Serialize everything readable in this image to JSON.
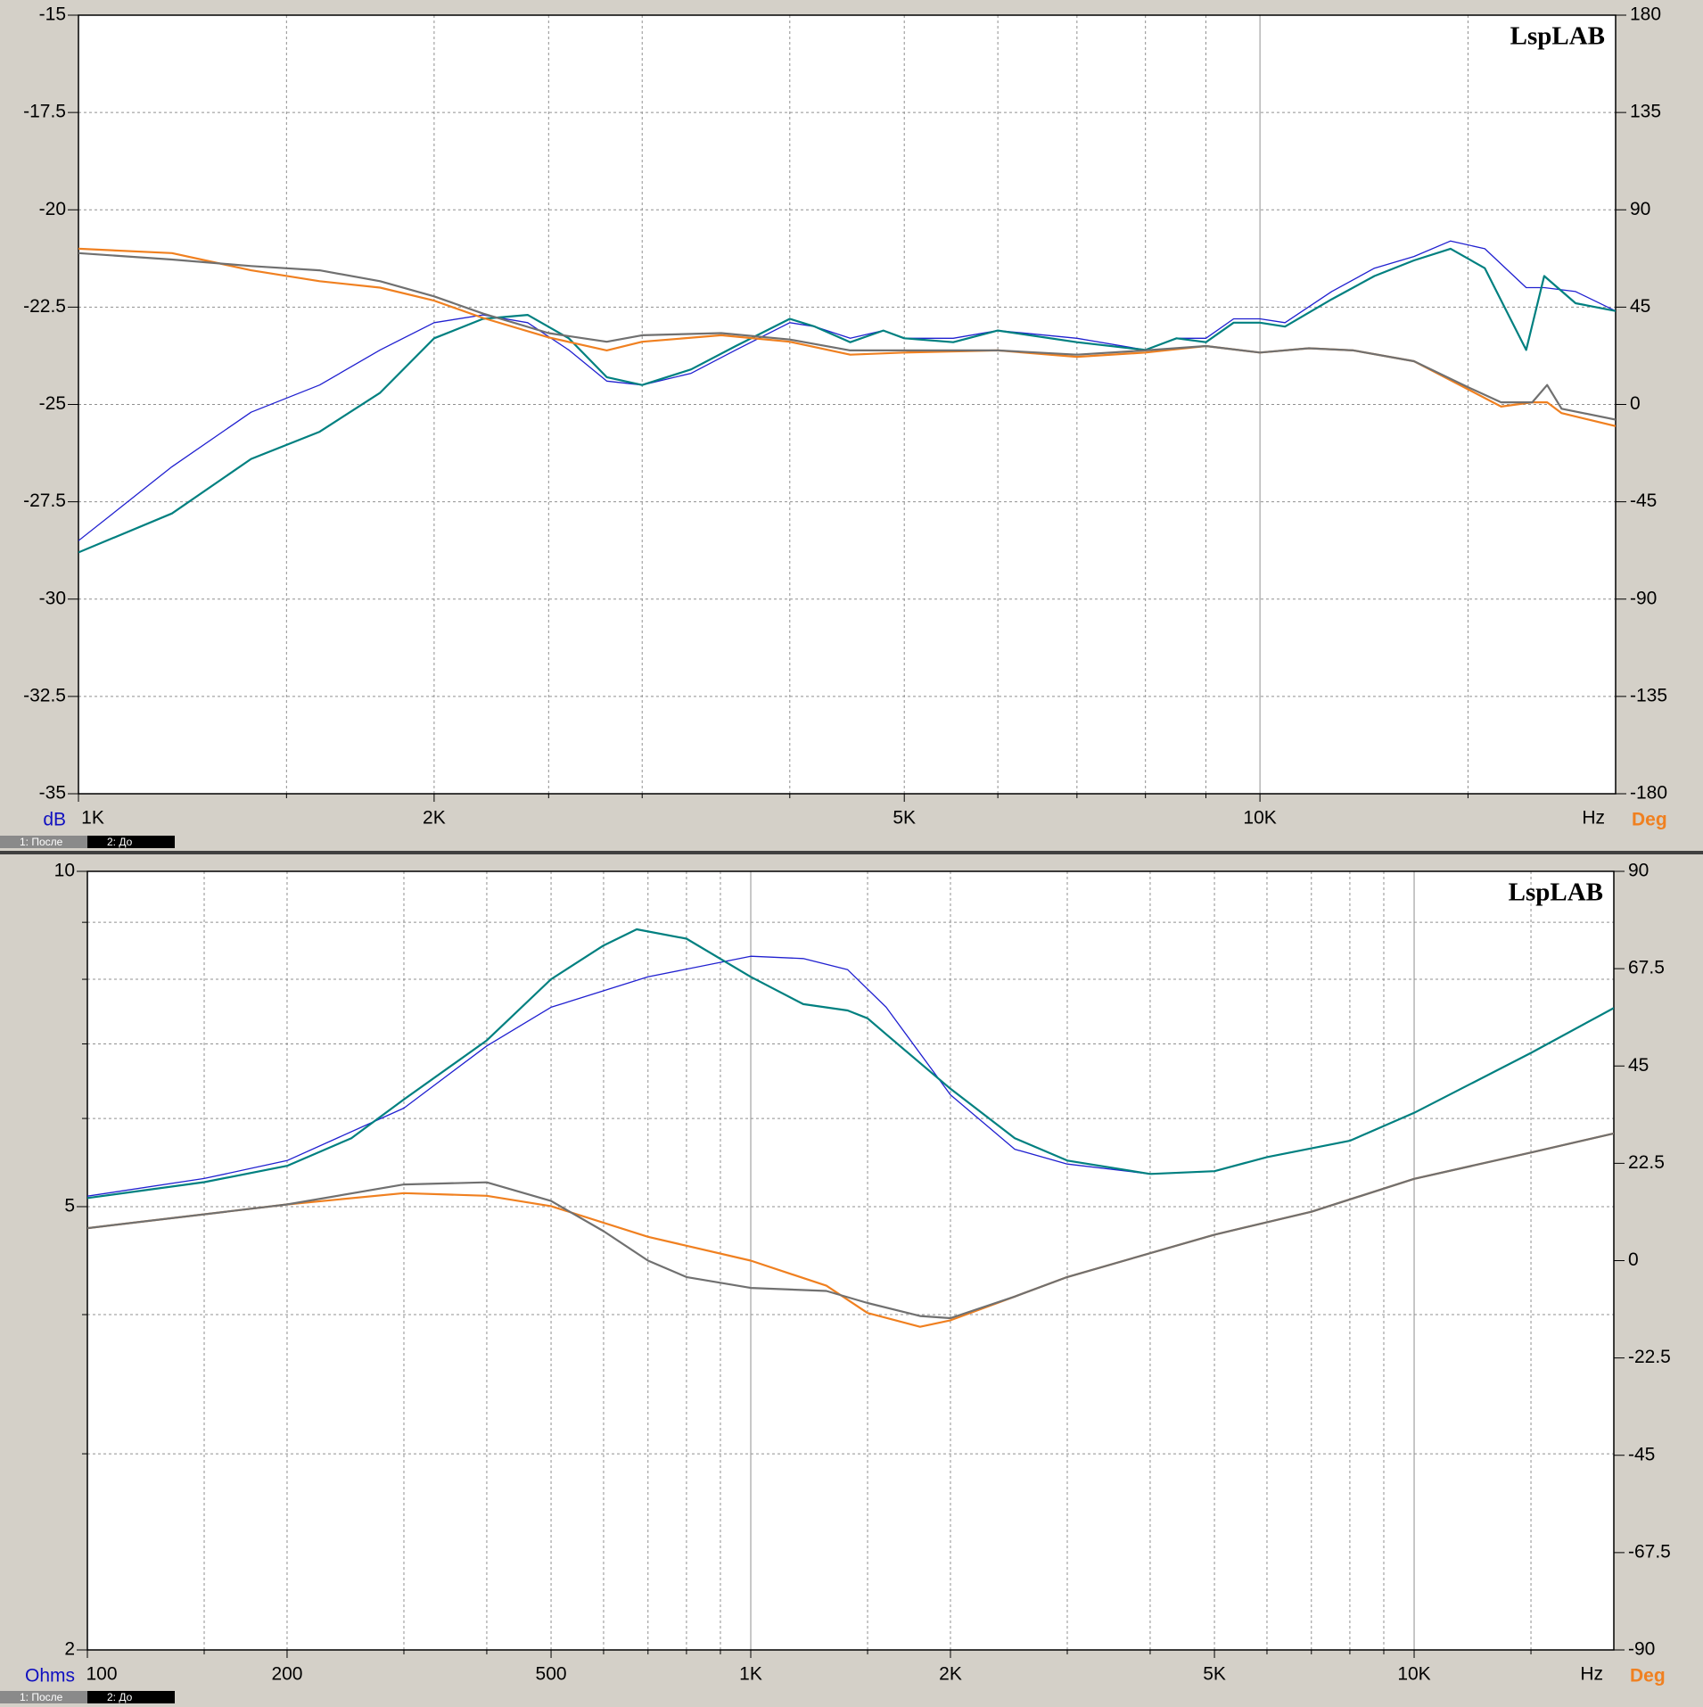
{
  "chart_data": [
    {
      "type": "line",
      "brand": "LspLAB",
      "y_unit": "dB",
      "y2_unit": "Deg",
      "x_unit": "Hz",
      "xscale": "log",
      "yscale": "linear",
      "xlim": [
        1000,
        20000
      ],
      "xticks": [
        {
          "value": 1000,
          "label": "1K"
        },
        {
          "value": 2000,
          "label": "2K"
        },
        {
          "value": 5000,
          "label": "5K"
        },
        {
          "value": 10000,
          "label": "10K"
        }
      ],
      "xminor": [
        1500,
        2500,
        3000,
        4000,
        6000,
        7000,
        8000,
        9000,
        15000
      ],
      "ylim": [
        -35,
        -15
      ],
      "yticks": [
        -15,
        -17.5,
        -20,
        -22.5,
        -25,
        -27.5,
        -30,
        -32.5,
        -35
      ],
      "y2lim": [
        -180,
        180
      ],
      "y2ticks": [
        180,
        135,
        90,
        45,
        0,
        -45,
        -90,
        -135,
        -180
      ],
      "legend": [
        "1: После",
        "2: До"
      ],
      "series": [
        {
          "color": "#2020d0",
          "x": [
            1000,
            1200,
            1400,
            1600,
            1800,
            2000,
            2200,
            2400,
            2600,
            2800,
            3000,
            3300,
            3600,
            4000,
            4200,
            4500,
            4800,
            5000,
            5500,
            6000,
            7000,
            8000,
            8500,
            9000,
            9500,
            10000,
            10500,
            11500,
            12500,
            13500,
            14500,
            15500,
            16800,
            17400,
            18500,
            20000
          ],
          "values": [
            -28.5,
            -26.6,
            -25.2,
            -24.5,
            -23.6,
            -22.9,
            -22.7,
            -22.9,
            -23.6,
            -24.4,
            -24.5,
            -24.2,
            -23.6,
            -22.9,
            -23.0,
            -23.3,
            -23.1,
            -23.3,
            -23.3,
            -23.1,
            -23.3,
            -23.6,
            -23.3,
            -23.3,
            -22.8,
            -22.8,
            -22.9,
            -22.1,
            -21.5,
            -21.2,
            -20.8,
            -21.0,
            -22.0,
            -22.0,
            -22.1,
            -22.6
          ]
        },
        {
          "color": "#008080",
          "x": [
            1000,
            1200,
            1400,
            1600,
            1800,
            2000,
            2200,
            2400,
            2600,
            2800,
            3000,
            3300,
            3600,
            4000,
            4200,
            4500,
            4800,
            5000,
            5500,
            6000,
            7000,
            8000,
            8500,
            9000,
            9500,
            10000,
            10500,
            11500,
            12500,
            13500,
            14500,
            15500,
            16800,
            17400,
            18500,
            20000
          ],
          "values": [
            -28.8,
            -27.8,
            -26.4,
            -25.7,
            -24.7,
            -23.3,
            -22.8,
            -22.7,
            -23.3,
            -24.3,
            -24.5,
            -24.1,
            -23.5,
            -22.8,
            -23.0,
            -23.4,
            -23.1,
            -23.3,
            -23.4,
            -23.1,
            -23.4,
            -23.6,
            -23.3,
            -23.4,
            -22.9,
            -22.9,
            -23.0,
            -22.3,
            -21.7,
            -21.3,
            -21.0,
            -21.5,
            -23.6,
            -21.7,
            -22.4,
            -22.6
          ]
        },
        {
          "color": "#f08020",
          "axis": "y2",
          "x": [
            1000,
            1200,
            1400,
            1600,
            1800,
            2000,
            2200,
            2500,
            2800,
            3000,
            3500,
            4000,
            4500,
            5000,
            6000,
            7000,
            8000,
            9000,
            10000,
            11000,
            12000,
            13500,
            15000,
            16000,
            17000,
            17500,
            18000,
            20000
          ],
          "values": [
            72,
            70,
            62,
            57,
            54,
            48,
            40,
            31,
            25,
            29,
            32,
            29,
            23,
            24,
            25,
            22,
            24,
            27,
            24,
            26,
            25,
            20,
            7,
            -1,
            1,
            1,
            -4,
            -10
          ]
        },
        {
          "color": "#707070",
          "axis": "y2",
          "x": [
            1000,
            1200,
            1400,
            1600,
            1800,
            2000,
            2200,
            2500,
            2800,
            3000,
            3500,
            4000,
            4500,
            5000,
            6000,
            7000,
            8000,
            9000,
            10000,
            11000,
            12000,
            13500,
            15000,
            16000,
            17000,
            17500,
            18000,
            20000
          ],
          "values": [
            70,
            67,
            64,
            62,
            57,
            50,
            42,
            33,
            29,
            32,
            33,
            30,
            25,
            25,
            25,
            23,
            25,
            27,
            24,
            26,
            25,
            20,
            8,
            1,
            1,
            9,
            -2,
            -7
          ]
        }
      ]
    },
    {
      "type": "line",
      "brand": "LspLAB",
      "y_unit": "Ohms",
      "y2_unit": "Deg",
      "x_unit": "Hz",
      "xscale": "log",
      "yscale": "log",
      "xlim": [
        100,
        20000
      ],
      "xticks": [
        100,
        200,
        500,
        {
          "value": 1000,
          "label": "1K"
        },
        {
          "value": 2000,
          "label": "2K"
        },
        {
          "value": 5000,
          "label": "5K"
        },
        {
          "value": 10000,
          "label": "10K"
        }
      ],
      "xminor": [
        150,
        300,
        400,
        600,
        700,
        800,
        900,
        1500,
        3000,
        4000,
        6000,
        7000,
        8000,
        9000,
        15000
      ],
      "ylim": [
        2,
        10
      ],
      "yticks": [
        2,
        5,
        10
      ],
      "yminor": [
        3,
        4,
        6,
        7,
        8,
        9
      ],
      "y2lim": [
        -90,
        90
      ],
      "y2ticks": [
        90,
        67.5,
        45,
        22.5,
        0,
        -22.5,
        -45,
        -67.5,
        -90
      ],
      "legend": [
        "1: После",
        "2: До"
      ],
      "series": [
        {
          "color": "#2020d0",
          "x": [
            100,
            150,
            200,
            300,
            400,
            500,
            700,
            1000,
            1200,
            1400,
            1600,
            2000,
            2500,
            3000,
            4000,
            5000,
            6000,
            8000,
            10000,
            15000,
            20000
          ],
          "values": [
            5.11,
            5.3,
            5.5,
            6.13,
            6.97,
            7.55,
            8.04,
            8.39,
            8.35,
            8.16,
            7.55,
            6.3,
            5.63,
            5.46,
            5.35,
            5.38,
            5.54,
            5.73,
            6.07,
            6.87,
            7.54
          ]
        },
        {
          "color": "#008080",
          "x": [
            100,
            150,
            200,
            250,
            300,
            400,
            500,
            600,
            673,
            800,
            1000,
            1200,
            1400,
            1500,
            1600,
            2000,
            2500,
            3000,
            4000,
            5000,
            6000,
            8000,
            10000,
            15000,
            20000
          ],
          "values": [
            5.09,
            5.26,
            5.44,
            5.76,
            6.24,
            7.05,
            8.0,
            8.58,
            8.87,
            8.7,
            8.04,
            7.6,
            7.5,
            7.38,
            7.14,
            6.38,
            5.76,
            5.5,
            5.35,
            5.38,
            5.54,
            5.73,
            6.07,
            6.87,
            7.54
          ]
        },
        {
          "color": "#f08020",
          "axis": "y2",
          "x": [
            100,
            200,
            300,
            400,
            500,
            700,
            1000,
            1300,
            1500,
            1800,
            2000,
            2500,
            3000,
            5000,
            7000,
            10000,
            15000,
            20000
          ],
          "values": [
            7.5,
            13,
            15.6,
            15,
            12.6,
            5.5,
            0,
            -5.8,
            -12.1,
            -15.3,
            -13.8,
            -8.3,
            -3.8,
            6,
            11.3,
            18.9,
            25,
            29.4
          ]
        },
        {
          "color": "#707070",
          "axis": "y2",
          "x": [
            100,
            200,
            300,
            400,
            500,
            600,
            700,
            800,
            1000,
            1300,
            1500,
            1800,
            2000,
            2500,
            3000,
            5000,
            7000,
            10000,
            15000,
            20000
          ],
          "values": [
            7.5,
            13,
            17.6,
            18.1,
            13.8,
            6.8,
            0,
            -3.8,
            -6.3,
            -7.0,
            -9.8,
            -12.8,
            -13.3,
            -8.3,
            -3.8,
            6,
            11.3,
            18.9,
            25,
            29.4
          ]
        }
      ]
    }
  ]
}
